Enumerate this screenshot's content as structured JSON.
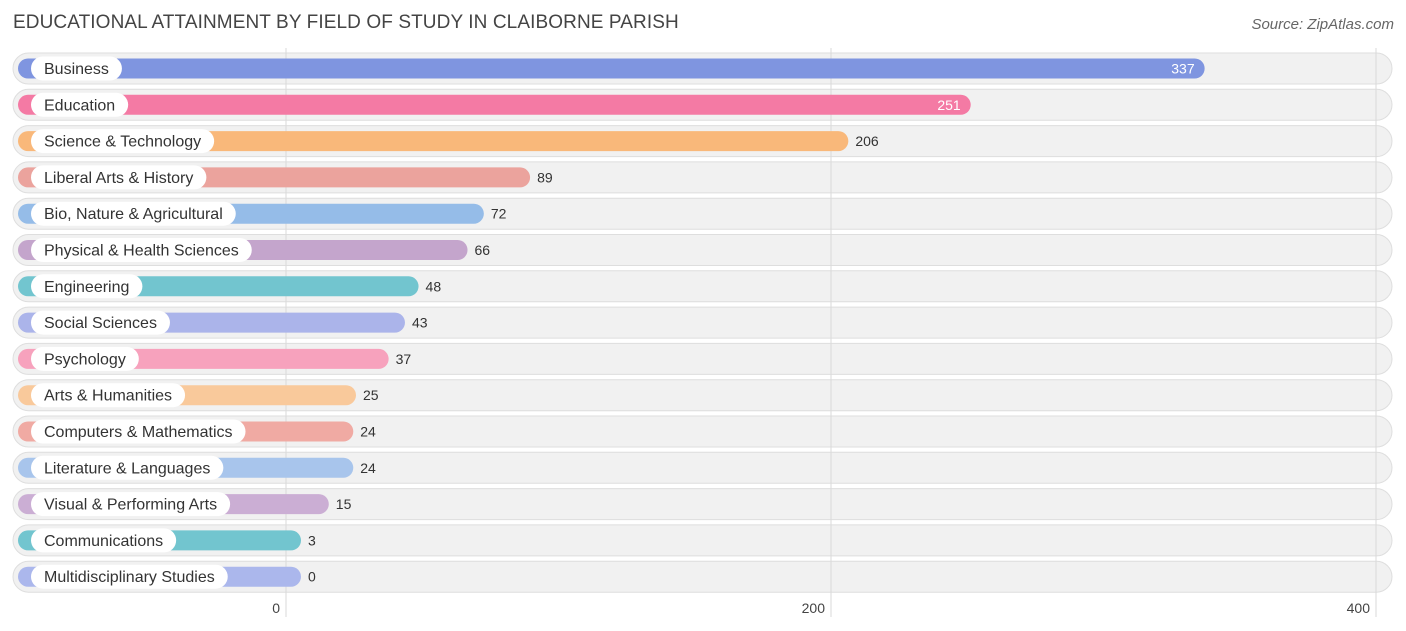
{
  "title": "EDUCATIONAL ATTAINMENT BY FIELD OF STUDY IN CLAIBORNE PARISH",
  "source": "Source: ZipAtlas.com",
  "chart_data": {
    "type": "bar",
    "orientation": "horizontal",
    "categories": [
      "Business",
      "Education",
      "Science & Technology",
      "Liberal Arts & History",
      "Bio, Nature & Agricultural",
      "Physical & Health Sciences",
      "Engineering",
      "Social Sciences",
      "Psychology",
      "Arts & Humanities",
      "Computers & Mathematics",
      "Literature & Languages",
      "Visual & Performing Arts",
      "Communications",
      "Multidisciplinary Studies"
    ],
    "values": [
      337,
      251,
      206,
      89,
      72,
      66,
      48,
      43,
      37,
      25,
      24,
      24,
      15,
      3,
      0
    ],
    "value_labels": [
      "337",
      "251",
      "206",
      "89",
      "72",
      "66",
      "48",
      "43",
      "37",
      "25",
      "24",
      "24",
      "15",
      "3",
      "0"
    ],
    "colors": [
      "#7f95e0",
      "#f47aa4",
      "#f9b87a",
      "#eba39d",
      "#95bce8",
      "#c4a5cc",
      "#72c5cf",
      "#abb4ea",
      "#f7a2bd",
      "#f9c99b",
      "#f0aaa3",
      "#a8c5ec",
      "#cbaed4",
      "#72c5cf",
      "#abb7ec"
    ],
    "xlim": [
      0,
      400
    ],
    "xticks": [
      "0",
      "200",
      "400"
    ],
    "grid": true,
    "xlabel": "",
    "ylabel": ""
  }
}
